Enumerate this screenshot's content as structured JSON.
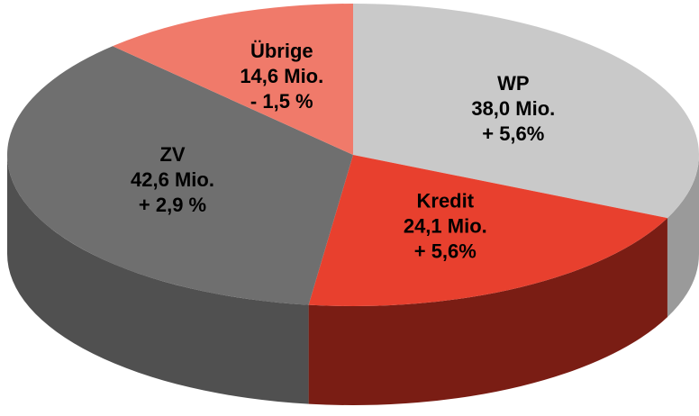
{
  "chart_data": {
    "type": "pie",
    "categories": [
      "WP",
      "Kredit",
      "ZV",
      "Übrige"
    ],
    "values": [
      38.0,
      24.1,
      42.6,
      14.6
    ],
    "value_labels": [
      "38,0 Mio.",
      "24,1 Mio.",
      "42,6 Mio.",
      "14,6 Mio."
    ],
    "change_labels": [
      "+ 5,6%",
      "+ 5,6%",
      "+ 2,9 %",
      "- 1,5 %"
    ],
    "colors": [
      "#c9c9c9",
      "#e8402e",
      "#6f6f6f",
      "#f07a6a"
    ],
    "side_colors": [
      "#9a9a9a",
      "#7a1d14",
      "#505050",
      "#b85a4e"
    ]
  }
}
